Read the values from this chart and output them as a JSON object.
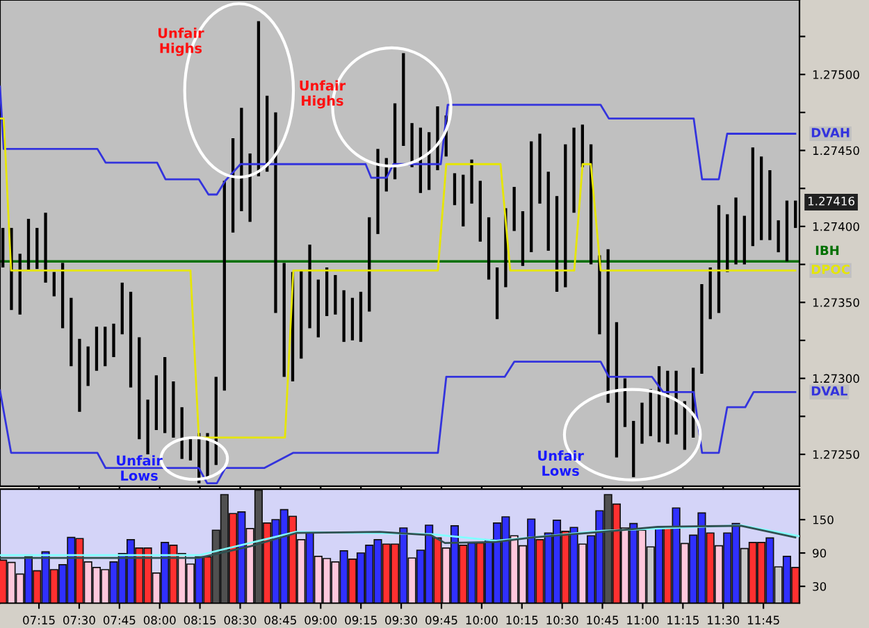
{
  "chart_data": [
    {
      "type": "bar",
      "tick_labels": "y",
      "grid": false,
      "legend": "right",
      "xlim": [
        7.008,
        11.974
      ],
      "ylim": [
        1.27229,
        1.27549
      ],
      "xticks": [
        {
          "value": 7.25,
          "label": null
        },
        {
          "value": 7.5,
          "label": null
        },
        {
          "value": 7.75,
          "label": null
        },
        {
          "value": 8,
          "label": null
        },
        {
          "value": 8.25,
          "label": null
        },
        {
          "value": 8.5,
          "label": null
        },
        {
          "value": 8.75,
          "label": null
        },
        {
          "value": 9,
          "label": null
        },
        {
          "value": 9.25,
          "label": null
        },
        {
          "value": 9.5,
          "label": null
        },
        {
          "value": 9.75,
          "label": null
        },
        {
          "value": 10,
          "label": null
        },
        {
          "value": 10.25,
          "label": null
        },
        {
          "value": 10.5,
          "label": null
        },
        {
          "value": 10.75,
          "label": null
        },
        {
          "value": 11,
          "label": null
        },
        {
          "value": 11.25,
          "label": null
        },
        {
          "value": 11.5,
          "label": null
        },
        {
          "value": 11.75,
          "label": null
        }
      ],
      "yticks": [
        {
          "value": 1.27525,
          "label": null
        },
        {
          "value": 1.275,
          "label": "1.27500"
        },
        {
          "value": 1.27475,
          "label": null
        },
        {
          "value": 1.2745,
          "label": "1.27450"
        },
        {
          "value": 1.27425,
          "label": null
        },
        {
          "value": 1.274,
          "label": "1.27400"
        },
        {
          "value": 1.27375,
          "label": null
        },
        {
          "value": 1.2735,
          "label": "1.27350"
        },
        {
          "value": 1.27325,
          "label": null
        },
        {
          "value": 1.273,
          "label": "1.27300"
        },
        {
          "value": 1.27275,
          "label": null
        },
        {
          "value": 1.2725,
          "label": "1.27250"
        }
      ],
      "ref_lines": [
        {
          "axis": "y",
          "value": 1.27377,
          "label": "IBH",
          "color": "#007000"
        }
      ],
      "annotations": [
        "Unfair\nHighs",
        "Unfair\nHighs",
        "Unfair\nLows",
        "Unfair\nLows",
        {
          "text": "1.27416",
          "x": 11.974,
          "y": 1.27416
        }
      ],
      "series": [
        {
          "type": "line",
          "name": "DVAH",
          "color": "#3333dd",
          "x": [
            7.008,
            7.031,
            7.613,
            7.664,
            7.984,
            8.036,
            8.243,
            8.303,
            8.355,
            8.407,
            8.502,
            9.279,
            9.314,
            9.409,
            9.452,
            9.746,
            9.789,
            10.739,
            10.79,
            11.317,
            11.369,
            11.473,
            11.525,
            11.948
          ],
          "values": [
            1.27492,
            1.27451,
            1.27451,
            1.27442,
            1.27442,
            1.27431,
            1.27431,
            1.27421,
            1.27421,
            1.2743,
            1.27441,
            1.27441,
            1.27432,
            1.27432,
            1.27441,
            1.27441,
            1.2748,
            1.2748,
            1.27471,
            1.27471,
            1.27431,
            1.27431,
            1.27461,
            1.27461
          ]
        },
        {
          "type": "line",
          "name": "DVAL",
          "color": "#3333dd",
          "x": [
            7.008,
            7.077,
            7.613,
            7.664,
            8.243,
            8.295,
            8.355,
            8.407,
            8.649,
            8.83,
            9.728,
            9.78,
            10.143,
            10.203,
            10.739,
            10.79,
            11.058,
            11.127,
            11.317,
            11.369,
            11.473,
            11.525,
            11.637,
            11.689,
            11.948
          ],
          "values": [
            1.27292,
            1.27251,
            1.27251,
            1.27241,
            1.27241,
            1.27231,
            1.27231,
            1.27241,
            1.27241,
            1.27251,
            1.27251,
            1.27301,
            1.27301,
            1.27311,
            1.27311,
            1.27301,
            1.27301,
            1.27291,
            1.27291,
            1.27251,
            1.27251,
            1.27281,
            1.27281,
            1.27291,
            1.27291
          ]
        },
        {
          "type": "line",
          "name": "DPOC",
          "color": "#e6e600",
          "x": [
            7.008,
            7.031,
            7.077,
            8.191,
            8.243,
            8.778,
            8.83,
            9.728,
            9.78,
            10.117,
            10.177,
            10.575,
            10.627,
            10.678,
            10.739,
            11.948
          ],
          "values": [
            1.27471,
            1.27471,
            1.27371,
            1.27371,
            1.27261,
            1.27261,
            1.27371,
            1.27371,
            1.27441,
            1.27441,
            1.27371,
            1.27371,
            1.27441,
            1.27441,
            1.27371,
            1.27371
          ]
        },
        {
          "color": "#000000",
          "x": [
            7.026,
            7.079,
            7.132,
            7.185,
            7.238,
            7.291,
            7.344,
            7.397,
            7.45,
            7.502,
            7.555,
            7.608,
            7.661,
            7.714,
            7.767,
            7.82,
            7.873,
            7.926,
            7.979,
            8.032,
            8.085,
            8.138,
            8.191,
            8.244,
            8.297,
            8.35,
            8.402,
            8.455,
            8.508,
            8.561,
            8.614,
            8.667,
            8.72,
            8.773,
            8.826,
            8.879,
            8.932,
            8.985,
            9.038,
            9.091,
            9.144,
            9.197,
            9.249,
            9.302,
            9.355,
            9.408,
            9.461,
            9.514,
            9.567,
            9.62,
            9.673,
            9.726,
            9.779,
            9.832,
            9.885,
            9.938,
            9.991,
            10.044,
            10.096,
            10.149,
            10.202,
            10.255,
            10.308,
            10.361,
            10.414,
            10.467,
            10.52,
            10.573,
            10.626,
            10.679,
            10.732,
            10.785,
            10.838,
            10.89,
            10.943,
            10.996,
            11.049,
            11.102,
            11.155,
            11.208,
            11.261,
            11.314,
            11.367,
            11.42,
            11.473,
            11.526,
            11.579,
            11.632,
            11.684,
            11.737,
            11.79,
            11.843,
            11.896,
            11.949
          ],
          "base": [
            1.27373,
            1.27345,
            1.27342,
            1.27371,
            1.27372,
            1.27363,
            1.27354,
            1.27333,
            1.27308,
            1.27278,
            1.27295,
            1.27305,
            1.27308,
            1.27314,
            1.27329,
            1.27294,
            1.2726,
            1.2725,
            1.27266,
            1.27264,
            1.27261,
            1.27247,
            1.27246,
            1.27231,
            1.27235,
            1.27243,
            1.27292,
            1.27396,
            1.2741,
            1.27403,
            1.27433,
            1.27436,
            1.27343,
            1.27301,
            1.27298,
            1.27313,
            1.27333,
            1.27327,
            1.27341,
            1.27342,
            1.27324,
            1.27325,
            1.27324,
            1.27344,
            1.27395,
            1.27423,
            1.27431,
            1.27453,
            1.27439,
            1.27422,
            1.27424,
            1.27437,
            1.27446,
            1.27414,
            1.274,
            1.27415,
            1.2739,
            1.27365,
            1.27339,
            1.2736,
            1.27397,
            1.27374,
            1.27383,
            1.27415,
            1.27384,
            1.27357,
            1.2736,
            1.27409,
            1.27439,
            1.27375,
            1.27329,
            1.27284,
            1.27248,
            1.27268,
            1.27235,
            1.27257,
            1.27262,
            1.27258,
            1.27257,
            1.27263,
            1.27253,
            1.27261,
            1.27303,
            1.27339,
            1.27343,
            1.2737,
            1.27375,
            1.27375,
            1.27387,
            1.27391,
            1.27391,
            1.27383,
            1.27377,
            1.27399
          ],
          "values": [
            0.00026,
            0.00054,
            0.0004,
            0.00034,
            0.00027,
            0.00046,
            0.00016,
            0.00043,
            0.00045,
            0.00048,
            0.00026,
            0.00029,
            0.00026,
            0.00022,
            0.00034,
            0.00063,
            0.00067,
            0.00036,
            0.00036,
            0.0005,
            0.00037,
            0.00034,
            0.00015,
            0.00033,
            0.00029,
            0.00058,
            0.00138,
            0.00062,
            0.00068,
            0.00045,
            0.00102,
            0.0005,
            0.00132,
            0.00075,
            0.00072,
            0.00058,
            0.00055,
            0.00038,
            0.00032,
            0.00026,
            0.00034,
            0.00028,
            0.00033,
            0.00062,
            0.00056,
            0.00022,
            0.0005,
            0.00061,
            0.00029,
            0.00043,
            0.00038,
            0.00042,
            0.00027,
            0.00021,
            0.00034,
            0.00029,
            0.0004,
            0.00041,
            0.00034,
            0.00052,
            0.00029,
            0.00036,
            0.00073,
            0.00046,
            0.00052,
            0.00063,
            0.00094,
            0.00056,
            0.00028,
            0.00079,
            0.00052,
            0.00101,
            0.00089,
            0.00032,
            0.00037,
            0.00027,
            0.00031,
            0.0005,
            0.00048,
            0.00042,
            0.00032,
            0.00046,
            0.00059,
            0.00034,
            0.00071,
            0.00038,
            0.00044,
            0.00032,
            0.00065,
            0.00055,
            0.00046,
            0.00021,
            0.0004,
            0.00018
          ]
        }
      ]
    },
    {
      "type": "bar",
      "grid": false,
      "xlim": [
        7.008,
        11.974
      ],
      "ylim": [
        0,
        205
      ],
      "xticks": [
        {
          "value": 7.25,
          "label": "07:15"
        },
        {
          "value": 7.5,
          "label": "07:30"
        },
        {
          "value": 7.75,
          "label": "07:45"
        },
        {
          "value": 8,
          "label": "08:00"
        },
        {
          "value": 8.25,
          "label": "08:15"
        },
        {
          "value": 8.5,
          "label": "08:30"
        },
        {
          "value": 8.75,
          "label": "08:45"
        },
        {
          "value": 9,
          "label": "09:00"
        },
        {
          "value": 9.25,
          "label": "09:15"
        },
        {
          "value": 9.5,
          "label": "09:30"
        },
        {
          "value": 9.75,
          "label": "09:45"
        },
        {
          "value": 10,
          "label": "10:00"
        },
        {
          "value": 10.25,
          "label": "10:15"
        },
        {
          "value": 10.5,
          "label": "10:30"
        },
        {
          "value": 10.75,
          "label": "10:45"
        },
        {
          "value": 11,
          "label": "11:00"
        },
        {
          "value": 11.25,
          "label": "11:15"
        },
        {
          "value": 11.5,
          "label": "11:30"
        },
        {
          "value": 11.75,
          "label": "11:45"
        }
      ],
      "yticks": [
        30,
        90,
        150
      ],
      "series": [
        {
          "type": "line",
          "color": "#80ffff",
          "x": [
            7.008,
            8.243,
            8.848,
            9.685,
            10.091,
            10.747,
            11.611,
            11.974
          ],
          "values": [
            86,
            86,
            128,
            124,
            112,
            130,
            140,
            120
          ]
        },
        {
          "type": "line",
          "color": "#305050",
          "x": [
            7.008,
            8.243,
            8.563,
            8.848,
            9.366,
            9.685,
            9.772,
            10.091,
            10.316,
            10.747,
            11.093,
            11.611,
            11.948
          ],
          "values": [
            81,
            81,
            102,
            126,
            128,
            122,
            108,
            110,
            118,
            128,
            137,
            139,
            118
          ]
        },
        {
          "x": [
            7.026,
            7.079,
            7.132,
            7.185,
            7.238,
            7.291,
            7.344,
            7.397,
            7.45,
            7.502,
            7.555,
            7.608,
            7.661,
            7.714,
            7.767,
            7.82,
            7.873,
            7.926,
            7.979,
            8.032,
            8.085,
            8.138,
            8.191,
            8.244,
            8.297,
            8.35,
            8.402,
            8.455,
            8.508,
            8.561,
            8.614,
            8.667,
            8.72,
            8.773,
            8.826,
            8.879,
            8.932,
            8.985,
            9.038,
            9.091,
            9.144,
            9.197,
            9.249,
            9.302,
            9.355,
            9.408,
            9.461,
            9.514,
            9.567,
            9.62,
            9.673,
            9.726,
            9.779,
            9.832,
            9.885,
            9.938,
            9.991,
            10.044,
            10.096,
            10.149,
            10.202,
            10.255,
            10.308,
            10.361,
            10.414,
            10.467,
            10.52,
            10.573,
            10.626,
            10.679,
            10.732,
            10.785,
            10.838,
            10.89,
            10.943,
            10.996,
            11.049,
            11.102,
            11.155,
            11.208,
            11.261,
            11.314,
            11.367,
            11.42,
            11.473,
            11.526,
            11.579,
            11.632,
            11.684,
            11.737,
            11.79,
            11.843,
            11.896,
            11.949
          ],
          "values": [
            77,
            73,
            52,
            83,
            58,
            92,
            60,
            69,
            118,
            116,
            74,
            64,
            60,
            74,
            89,
            114,
            99,
            99,
            54,
            109,
            104,
            89,
            70,
            83,
            83,
            131,
            195,
            161,
            164,
            134,
            203,
            144,
            150,
            168,
            156,
            114,
            126,
            84,
            80,
            74,
            94,
            79,
            90,
            104,
            114,
            106,
            106,
            135,
            81,
            95,
            140,
            117,
            99,
            139,
            104,
            108,
            108,
            114,
            144,
            155,
            121,
            103,
            151,
            114,
            126,
            149,
            129,
            136,
            106,
            121,
            166,
            195,
            178,
            135,
            143,
            131,
            101,
            136,
            136,
            171,
            107,
            122,
            162,
            126,
            103,
            126,
            143,
            98,
            109,
            109,
            117,
            65,
            84,
            64
          ],
          "colors": [
            "#ff3030",
            "#ffc8dc",
            "#ffc8dc",
            "#3030ff",
            "#ff3030",
            "#3030ff",
            "#ff3030",
            "#3030ff",
            "#3030ff",
            "#ff3030",
            "#ffc8dc",
            "#ffc8dc",
            "#ffc8dc",
            "#3030ff",
            "#3030ff",
            "#3030ff",
            "#ff3030",
            "#ff3030",
            "#ffc8dc",
            "#3030ff",
            "#ff3030",
            "#ffc8dc",
            "#ffc8dc",
            "#3030ff",
            "#ff3030",
            "#505050",
            "#505050",
            "#ff3030",
            "#3030ff",
            "#ffc8dc",
            "#505050",
            "#ff3030",
            "#3030ff",
            "#3030ff",
            "#ff3030",
            "#ffc8dc",
            "#3030ff",
            "#ffc8dc",
            "#ffc8dc",
            "#ffc8dc",
            "#3030ff",
            "#ff3030",
            "#3030ff",
            "#3030ff",
            "#3030ff",
            "#ff3030",
            "#ff3030",
            "#3030ff",
            "#ffc8dc",
            "#3030ff",
            "#3030ff",
            "#ff3030",
            "#ffc8dc",
            "#3030ff",
            "#ff3030",
            "#3030ff",
            "#ff3030",
            "#3030ff",
            "#3030ff",
            "#3030ff",
            "#ffc8dc",
            "#ffc8dc",
            "#3030ff",
            "#ff3030",
            "#3030ff",
            "#3030ff",
            "#ff3030",
            "#3030ff",
            "#ffc8dc",
            "#3030ff",
            "#3030ff",
            "#505050",
            "#ff3030",
            "#ffc8dc",
            "#3030ff",
            "#ffc8dc",
            "#c8c8c8",
            "#3030ff",
            "#ff3030",
            "#3030ff",
            "#ffc8dc",
            "#3030ff",
            "#3030ff",
            "#ff3030",
            "#ffc8dc",
            "#3030ff",
            "#3030ff",
            "#c8c8c8",
            "#ff3030",
            "#ff3030",
            "#3030ff",
            "#c8c8c8",
            "#3030ff",
            "#ff3030"
          ]
        }
      ]
    }
  ]
}
